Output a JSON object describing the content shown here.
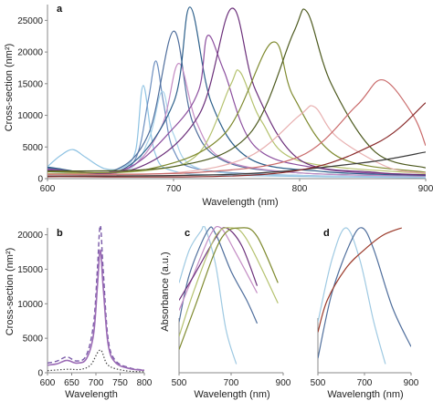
{
  "panel_labels": [
    "a",
    "b",
    "c",
    "d"
  ],
  "colors": {
    "axis": "#888888",
    "palette": [
      "#7fb3d5",
      "#6c8ebf",
      "#9ec9e2",
      "#c48cc4",
      "#8c4f9e",
      "#b7b7b7",
      "#2c5f8a",
      "#9b9b2f",
      "#b5c26f",
      "#8a8f3b",
      "#5b6b2a",
      "#e8a9a9",
      "#c96a6a",
      "#2e4a66",
      "#a3b0bf"
    ]
  },
  "chart_data": [
    {
      "panel": "a",
      "type": "line",
      "xlabel": "Wavelength (nm)",
      "ylabel": "Cross-section (nm²)",
      "xlim": [
        600,
        900
      ],
      "ylim": [
        0,
        27500
      ],
      "xticks": [
        "600",
        "700",
        "800",
        "900"
      ],
      "yticks": [
        "0",
        "5000",
        "10000",
        "15000",
        "20000",
        "25000"
      ],
      "series": [
        {
          "color": "#8fc3e3",
          "values": [
            [
              600,
              1900
            ],
            [
              610,
              3600
            ],
            [
              620,
              4600
            ],
            [
              630,
              3400
            ],
            [
              645,
              1600
            ],
            [
              660,
              1800
            ],
            [
              670,
              4500
            ],
            [
              676,
              14700
            ],
            [
              685,
              4200
            ],
            [
              700,
              1200
            ],
            [
              750,
              500
            ],
            [
              900,
              150
            ]
          ]
        },
        {
          "color": "#6c8ebf",
          "values": [
            [
              600,
              1600
            ],
            [
              650,
              900
            ],
            [
              670,
              3200
            ],
            [
              680,
              12500
            ],
            [
              686,
              18600
            ],
            [
              692,
              12000
            ],
            [
              700,
              4500
            ],
            [
              720,
              1500
            ],
            [
              800,
              500
            ],
            [
              900,
              300
            ]
          ]
        },
        {
          "color": "#a8d2ea",
          "values": [
            [
              600,
              1100
            ],
            [
              660,
              1100
            ],
            [
              680,
              6000
            ],
            [
              691,
              13800
            ],
            [
              700,
              7000
            ],
            [
              720,
              1600
            ],
            [
              800,
              500
            ],
            [
              900,
              250
            ]
          ]
        },
        {
          "color": "#4f6e9c",
          "values": [
            [
              600,
              1700
            ],
            [
              650,
              1100
            ],
            [
              680,
              7000
            ],
            [
              700,
              23300
            ],
            [
              715,
              9000
            ],
            [
              740,
              2800
            ],
            [
              800,
              900
            ],
            [
              900,
              400
            ]
          ]
        },
        {
          "color": "#c48cc4",
          "values": [
            [
              600,
              1300
            ],
            [
              660,
              1200
            ],
            [
              690,
              8000
            ],
            [
              704,
              18200
            ],
            [
              718,
              9000
            ],
            [
              740,
              3000
            ],
            [
              800,
              900
            ],
            [
              900,
              400
            ]
          ]
        },
        {
          "color": "#2c5f8a",
          "values": [
            [
              600,
              1800
            ],
            [
              660,
              1500
            ],
            [
              700,
              12000
            ],
            [
              713,
              27100
            ],
            [
              730,
              12000
            ],
            [
              760,
              3200
            ],
            [
              820,
              1100
            ],
            [
              900,
              500
            ]
          ]
        },
        {
          "color": "#8c4f9e",
          "values": [
            [
              600,
              1500
            ],
            [
              660,
              1400
            ],
            [
              700,
              8000
            ],
            [
              720,
              14000
            ],
            [
              727,
              22600
            ],
            [
              740,
              17000
            ],
            [
              765,
              5000
            ],
            [
              820,
              1500
            ],
            [
              900,
              600
            ]
          ]
        },
        {
          "color": "#b5c26f",
          "values": [
            [
              600,
              800
            ],
            [
              680,
              1300
            ],
            [
              720,
              4000
            ],
            [
              745,
              14700
            ],
            [
              753,
              16800
            ],
            [
              770,
              9000
            ],
            [
              800,
              2800
            ],
            [
              900,
              800
            ]
          ]
        },
        {
          "color": "#6b2f7a",
          "values": [
            [
              600,
              1300
            ],
            [
              670,
              1600
            ],
            [
              720,
              10000
            ],
            [
              746,
              26900
            ],
            [
              765,
              14000
            ],
            [
              800,
              3000
            ],
            [
              860,
              1000
            ],
            [
              900,
              600
            ]
          ]
        },
        {
          "color": "#7f8a2f",
          "values": [
            [
              600,
              1100
            ],
            [
              680,
              1500
            ],
            [
              740,
              7000
            ],
            [
              778,
              21500
            ],
            [
              795,
              13000
            ],
            [
              830,
              3500
            ],
            [
              900,
              1000
            ]
          ]
        },
        {
          "color": "#e8b0b0",
          "values": [
            [
              600,
              600
            ],
            [
              700,
              900
            ],
            [
              760,
              3500
            ],
            [
              800,
              10000
            ],
            [
              812,
              11300
            ],
            [
              830,
              6500
            ],
            [
              870,
              1800
            ],
            [
              900,
              900
            ]
          ]
        },
        {
          "color": "#4d5a1f",
          "values": [
            [
              600,
              1200
            ],
            [
              700,
              1900
            ],
            [
              760,
              7000
            ],
            [
              795,
              23000
            ],
            [
              806,
              26300
            ],
            [
              825,
              15000
            ],
            [
              860,
              4200
            ],
            [
              900,
              1700
            ]
          ]
        },
        {
          "color": "#c96a6a",
          "values": [
            [
              600,
              700
            ],
            [
              720,
              1000
            ],
            [
              800,
              3500
            ],
            [
              845,
              11500
            ],
            [
              866,
              15600
            ],
            [
              890,
              10000
            ],
            [
              900,
              5200
            ]
          ]
        },
        {
          "color": "#3a3a3a",
          "values": [
            [
              600,
              400
            ],
            [
              750,
              700
            ],
            [
              850,
              2500
            ],
            [
              900,
              4200
            ]
          ]
        },
        {
          "color": "#8a2c2c",
          "values": [
            [
              600,
              300
            ],
            [
              780,
              800
            ],
            [
              860,
              5500
            ],
            [
              900,
              12000
            ]
          ]
        }
      ]
    },
    {
      "panel": "b",
      "type": "line",
      "xlabel": "Wavelength",
      "ylabel": "Cross-section (nm²)",
      "xlim": [
        600,
        800
      ],
      "ylim": [
        0,
        21000
      ],
      "xticks": [
        "600",
        "650",
        "700",
        "750",
        "800"
      ],
      "yticks": [
        "0",
        "5000",
        "10000",
        "15000",
        "20000"
      ],
      "series": [
        {
          "style": "dashed",
          "color": "#7a5aa8",
          "values": [
            [
              600,
              1400
            ],
            [
              620,
              1700
            ],
            [
              640,
              2300
            ],
            [
              660,
              1700
            ],
            [
              680,
              2500
            ],
            [
              695,
              7000
            ],
            [
              703,
              15000
            ],
            [
              709,
              21400
            ],
            [
              715,
              15000
            ],
            [
              725,
              5000
            ],
            [
              740,
              1800
            ],
            [
              770,
              700
            ],
            [
              800,
              400
            ]
          ]
        },
        {
          "style": "solid",
          "color": "#9b6bb5",
          "values": [
            [
              600,
              1100
            ],
            [
              620,
              1300
            ],
            [
              640,
              1800
            ],
            [
              660,
              1400
            ],
            [
              680,
              2000
            ],
            [
              695,
              5500
            ],
            [
              703,
              12500
            ],
            [
              709,
              17800
            ],
            [
              715,
              12500
            ],
            [
              725,
              4200
            ],
            [
              740,
              1500
            ],
            [
              770,
              600
            ],
            [
              800,
              350
            ]
          ]
        },
        {
          "style": "dotted",
          "color": "#444444",
          "values": [
            [
              600,
              300
            ],
            [
              640,
              500
            ],
            [
              670,
              500
            ],
            [
              690,
              1200
            ],
            [
              709,
              3300
            ],
            [
              725,
              1100
            ],
            [
              760,
              300
            ],
            [
              800,
              150
            ]
          ]
        }
      ]
    },
    {
      "panel": "c",
      "type": "line",
      "xlabel": "Wavelength (nm)",
      "ylabel": "Absorbance (a.u.)",
      "xlim": [
        500,
        900
      ],
      "ylim": [
        0,
        1
      ],
      "xticks": [
        "500",
        "700",
        "900"
      ],
      "series": [
        {
          "color": "#9ec9e2",
          "values": [
            [
              500,
              0.62
            ],
            [
              540,
              0.85
            ],
            [
              585,
              0.98
            ],
            [
              600,
              1.0
            ],
            [
              640,
              0.75
            ],
            [
              680,
              0.3
            ],
            [
              720,
              0.06
            ]
          ]
        },
        {
          "color": "#4f6e9c",
          "values": [
            [
              500,
              0.35
            ],
            [
              540,
              0.68
            ],
            [
              610,
              0.98
            ],
            [
              640,
              0.96
            ],
            [
              700,
              0.7
            ],
            [
              760,
              0.5
            ],
            [
              800,
              0.34
            ]
          ]
        },
        {
          "color": "#c48cc4",
          "values": [
            [
              500,
              0.43
            ],
            [
              550,
              0.65
            ],
            [
              620,
              0.95
            ],
            [
              660,
              1.0
            ],
            [
              720,
              0.82
            ],
            [
              800,
              0.55
            ]
          ]
        },
        {
          "color": "#6b2f7a",
          "values": [
            [
              500,
              0.5
            ],
            [
              560,
              0.68
            ],
            [
              640,
              0.93
            ],
            [
              680,
              1.0
            ],
            [
              740,
              0.88
            ],
            [
              800,
              0.6
            ]
          ]
        },
        {
          "color": "#b5c26f",
          "values": [
            [
              500,
              0.25
            ],
            [
              560,
              0.58
            ],
            [
              640,
              0.94
            ],
            [
              700,
              1.0
            ],
            [
              760,
              0.92
            ],
            [
              880,
              0.48
            ]
          ]
        },
        {
          "color": "#7f8a2f",
          "values": [
            [
              500,
              0.16
            ],
            [
              560,
              0.45
            ],
            [
              660,
              0.92
            ],
            [
              740,
              1.0
            ],
            [
              800,
              0.94
            ],
            [
              880,
              0.62
            ]
          ]
        }
      ]
    },
    {
      "panel": "d",
      "type": "line",
      "xlabel": "Wavelength (nm)",
      "xlim": [
        500,
        900
      ],
      "ylim": [
        0,
        1
      ],
      "xticks": [
        "500",
        "700",
        "900"
      ],
      "series": [
        {
          "color": "#9ec9e2",
          "values": [
            [
              500,
              0.35
            ],
            [
              560,
              0.78
            ],
            [
              620,
              1.0
            ],
            [
              680,
              0.78
            ],
            [
              740,
              0.35
            ],
            [
              790,
              0.06
            ]
          ]
        },
        {
          "color": "#4f6e9c",
          "values": [
            [
              500,
              0.1
            ],
            [
              560,
              0.55
            ],
            [
              640,
              0.9
            ],
            [
              690,
              1.0
            ],
            [
              740,
              0.85
            ],
            [
              820,
              0.45
            ],
            [
              900,
              0.18
            ]
          ]
        },
        {
          "color": "#9b3a2a",
          "values": [
            [
              500,
              0.28
            ],
            [
              540,
              0.5
            ],
            [
              620,
              0.72
            ],
            [
              700,
              0.85
            ],
            [
              780,
              0.95
            ],
            [
              860,
              1.0
            ]
          ]
        }
      ]
    }
  ]
}
